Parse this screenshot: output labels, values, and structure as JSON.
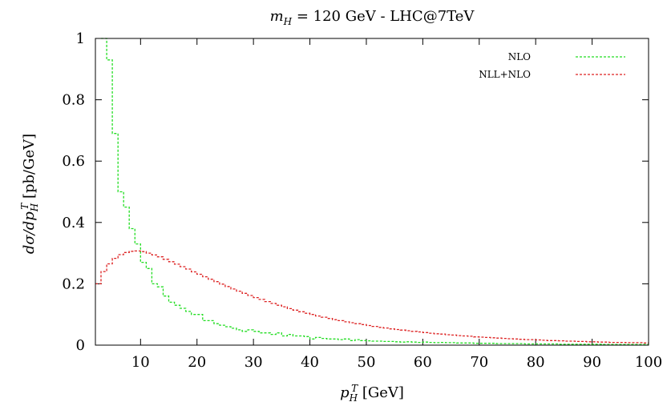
{
  "chart_data": {
    "type": "line",
    "title": "m_H = 120 GeV - LHC@7TeV",
    "title_parts": {
      "var": "m",
      "sub": "H",
      "rest": " = 120 GeV - LHC@7TeV"
    },
    "xlabel": "p_H^T [GeV]",
    "xlabel_parts": {
      "var": "p",
      "sub": "H",
      "sup": "T",
      "rest": " [GeV]"
    },
    "ylabel": "dσ/dp_H^T [pb/GeV]",
    "ylabel_parts": {
      "pre": "dσ/dp",
      "sub": "H",
      "sup": "T",
      "rest": " [pb/GeV]"
    },
    "xlim": [
      2,
      100
    ],
    "ylim": [
      0,
      1
    ],
    "xticks": [
      10,
      20,
      30,
      40,
      50,
      60,
      70,
      80,
      90,
      100
    ],
    "xtick_labels": [
      "10",
      "20",
      "30",
      "40",
      "50",
      "60",
      "70",
      "80",
      "90",
      "100"
    ],
    "yticks": [
      0,
      0.2,
      0.4,
      0.6,
      0.8,
      1
    ],
    "ytick_labels": [
      "0",
      "0.2",
      "0.4",
      "0.6",
      "0.8",
      "1"
    ],
    "grid": false,
    "legend_position": "top-right",
    "series": [
      {
        "name": "NLO",
        "color": "#22dd22",
        "style": "histogram",
        "bin_width": 1,
        "x": [
          3,
          4,
          5,
          6,
          7,
          8,
          9,
          10,
          11,
          12,
          13,
          14,
          15,
          16,
          17,
          18,
          19,
          20,
          21,
          22,
          23,
          24,
          25,
          26,
          27,
          28,
          29,
          30,
          31,
          32,
          33,
          34,
          35,
          36,
          37,
          38,
          39,
          40,
          41,
          42,
          43,
          44,
          45,
          46,
          47,
          48,
          49,
          50,
          51,
          52,
          53,
          54,
          55,
          56,
          57,
          58,
          59,
          60,
          61,
          62,
          63,
          64,
          65,
          66,
          67,
          68,
          69,
          70,
          71,
          72,
          73,
          74,
          75,
          76,
          77,
          78,
          79,
          80,
          81,
          82,
          83,
          84,
          85,
          86,
          87,
          88,
          89,
          90,
          91,
          92,
          93,
          94,
          95,
          96,
          97,
          98,
          99
        ],
        "values": [
          1.0,
          0.93,
          0.69,
          0.5,
          0.45,
          0.38,
          0.33,
          0.27,
          0.25,
          0.2,
          0.19,
          0.16,
          0.14,
          0.13,
          0.12,
          0.11,
          0.1,
          0.1,
          0.08,
          0.08,
          0.07,
          0.065,
          0.06,
          0.055,
          0.05,
          0.045,
          0.05,
          0.045,
          0.04,
          0.04,
          0.035,
          0.04,
          0.03,
          0.035,
          0.03,
          0.03,
          0.028,
          0.02,
          0.025,
          0.022,
          0.02,
          0.02,
          0.018,
          0.02,
          0.015,
          0.018,
          0.015,
          0.014,
          0.013,
          0.013,
          0.012,
          0.012,
          0.011,
          0.01,
          0.011,
          0.01,
          0.009,
          0.01,
          0.009,
          0.008,
          0.009,
          0.008,
          0.008,
          0.007,
          0.007,
          0.007,
          0.006,
          0.006,
          0.006,
          0.006,
          0.005,
          0.005,
          0.005,
          0.005,
          0.005,
          0.004,
          0.004,
          0.004,
          0.004,
          0.004,
          0.004,
          0.003,
          0.003,
          0.003,
          0.003,
          0.003,
          0.003,
          0.003,
          0.003,
          0.002,
          0.002,
          0.002,
          0.002,
          0.002,
          0.002,
          0.002,
          0.002
        ]
      },
      {
        "name": "NLL+NLO",
        "color": "#dd2222",
        "style": "histogram",
        "bin_width": 1,
        "x": [
          2,
          3,
          4,
          5,
          6,
          7,
          8,
          9,
          10,
          11,
          12,
          13,
          14,
          15,
          16,
          17,
          18,
          19,
          20,
          21,
          22,
          23,
          24,
          25,
          26,
          27,
          28,
          29,
          30,
          31,
          32,
          33,
          34,
          35,
          36,
          37,
          38,
          39,
          40,
          41,
          42,
          43,
          44,
          45,
          46,
          47,
          48,
          49,
          50,
          51,
          52,
          53,
          54,
          55,
          56,
          57,
          58,
          59,
          60,
          61,
          62,
          63,
          64,
          65,
          66,
          67,
          68,
          69,
          70,
          71,
          72,
          73,
          74,
          75,
          76,
          77,
          78,
          79,
          80,
          81,
          82,
          83,
          84,
          85,
          86,
          87,
          88,
          89,
          90,
          91,
          92,
          93,
          94,
          95,
          96,
          97,
          98,
          99
        ],
        "values": [
          0.2,
          0.24,
          0.265,
          0.283,
          0.295,
          0.302,
          0.306,
          0.307,
          0.305,
          0.3,
          0.294,
          0.288,
          0.28,
          0.272,
          0.264,
          0.256,
          0.248,
          0.239,
          0.231,
          0.223,
          0.215,
          0.207,
          0.199,
          0.191,
          0.183,
          0.176,
          0.169,
          0.162,
          0.155,
          0.149,
          0.142,
          0.136,
          0.13,
          0.125,
          0.119,
          0.114,
          0.109,
          0.104,
          0.1,
          0.095,
          0.091,
          0.087,
          0.083,
          0.08,
          0.076,
          0.073,
          0.07,
          0.067,
          0.064,
          0.061,
          0.058,
          0.056,
          0.053,
          0.051,
          0.049,
          0.047,
          0.045,
          0.043,
          0.041,
          0.039,
          0.037,
          0.036,
          0.034,
          0.033,
          0.031,
          0.03,
          0.029,
          0.027,
          0.026,
          0.025,
          0.024,
          0.023,
          0.022,
          0.021,
          0.02,
          0.019,
          0.018,
          0.018,
          0.017,
          0.016,
          0.015,
          0.015,
          0.014,
          0.013,
          0.013,
          0.012,
          0.012,
          0.011,
          0.011,
          0.01,
          0.01,
          0.009,
          0.009,
          0.009,
          0.008,
          0.008,
          0.008,
          0.007
        ]
      }
    ]
  }
}
